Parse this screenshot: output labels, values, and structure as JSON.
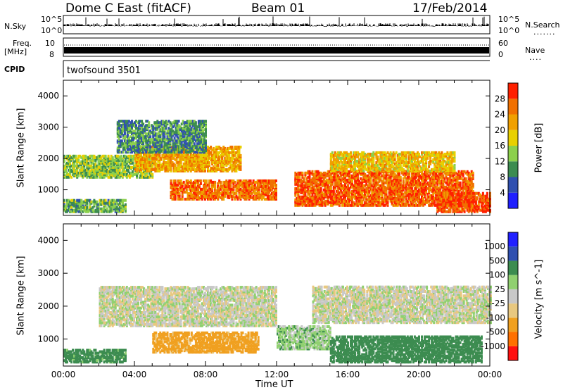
{
  "header": {
    "station": "Dome C East (fitACF)",
    "beam": "Beam 01",
    "date": "17/Feb/2014"
  },
  "strip_panels": {
    "nsky_label": "N.Sky",
    "nsky_ticks": [
      "10^5",
      "10^0"
    ],
    "nsearch_label": "N.Search",
    "freq_label": "Freq.",
    "freq_unit": "[MHz]",
    "freq_ticks": [
      "10",
      "8"
    ],
    "nave_label": "Nave",
    "nave_ticks": [
      "60",
      "0"
    ],
    "cpid_label": "CPID",
    "cpid_value": "twofsound 3501"
  },
  "colors": {
    "power_scale": [
      "#2020ff",
      "#3050b0",
      "#3c8c50",
      "#8cd04c",
      "#e8d000",
      "#f0a000",
      "#f07000",
      "#ff2000"
    ],
    "velocity_scale": [
      "#ff1010",
      "#ff7000",
      "#f0a020",
      "#e8c880",
      "#c8c8c8",
      "#90d070",
      "#3c8c50",
      "#3050b0",
      "#2020ff"
    ]
  },
  "chart_data": [
    {
      "type": "heatmap",
      "title": "Power",
      "xlabel": "",
      "ylabel": "Slant Range [km]",
      "xlim": [
        "00:00",
        "24:00"
      ],
      "ylim": [
        180,
        4500
      ],
      "x_ticks": [
        "00:00",
        "04:00",
        "08:00",
        "12:00",
        "16:00",
        "20:00",
        "00:00"
      ],
      "y_ticks": [
        1000,
        2000,
        3000,
        4000
      ],
      "colorbar": {
        "label": "Power [dB]",
        "ticks": [
          4,
          8,
          12,
          16,
          20,
          24,
          28
        ]
      },
      "regions": [
        {
          "t0": 0.0,
          "t1": 3.5,
          "r0": 300,
          "r1": 700,
          "value": 12
        },
        {
          "t0": 0.0,
          "t1": 5.0,
          "r0": 1400,
          "r1": 2100,
          "value": 14
        },
        {
          "t0": 4.0,
          "t1": 10.0,
          "r0": 1600,
          "r1": 2400,
          "value": 22
        },
        {
          "t0": 6.0,
          "t1": 12.0,
          "r0": 700,
          "r1": 1300,
          "value": 26
        },
        {
          "t0": 13.0,
          "t1": 23.0,
          "r0": 500,
          "r1": 1600,
          "value": 27
        },
        {
          "t0": 15.0,
          "t1": 22.0,
          "r0": 1600,
          "r1": 2200,
          "value": 20
        },
        {
          "t0": 21.0,
          "t1": 24.0,
          "r0": 300,
          "r1": 900,
          "value": 28
        },
        {
          "t0": 3.0,
          "t1": 8.0,
          "r0": 2200,
          "r1": 3200,
          "value": 10
        }
      ]
    },
    {
      "type": "heatmap",
      "title": "Velocity",
      "xlabel": "Time UT",
      "ylabel": "Slant Range [km]",
      "xlim": [
        "00:00",
        "24:00"
      ],
      "ylim": [
        180,
        4500
      ],
      "x_ticks": [
        "00:00",
        "04:00",
        "08:00",
        "12:00",
        "16:00",
        "20:00",
        "00:00"
      ],
      "y_ticks": [
        1000,
        2000,
        3000,
        4000
      ],
      "colorbar": {
        "label": "Velocity [m s^-1]",
        "ticks": [
          1000,
          500,
          100,
          25,
          -25,
          -100,
          -500,
          -1000
        ]
      },
      "regions": [
        {
          "t0": 0.0,
          "t1": 3.5,
          "r0": 300,
          "r1": 700,
          "value": 150
        },
        {
          "t0": 2.0,
          "t1": 12.0,
          "r0": 1400,
          "r1": 2600,
          "value": 0
        },
        {
          "t0": 5.0,
          "t1": 11.0,
          "r0": 600,
          "r1": 1200,
          "value": -150
        },
        {
          "t0": 12.0,
          "t1": 15.0,
          "r0": 700,
          "r1": 1400,
          "value": 60
        },
        {
          "t0": 15.0,
          "t1": 23.5,
          "r0": 300,
          "r1": 1100,
          "value": 250
        },
        {
          "t0": 14.0,
          "t1": 24.0,
          "r0": 1500,
          "r1": 2600,
          "value": 0
        }
      ]
    }
  ]
}
